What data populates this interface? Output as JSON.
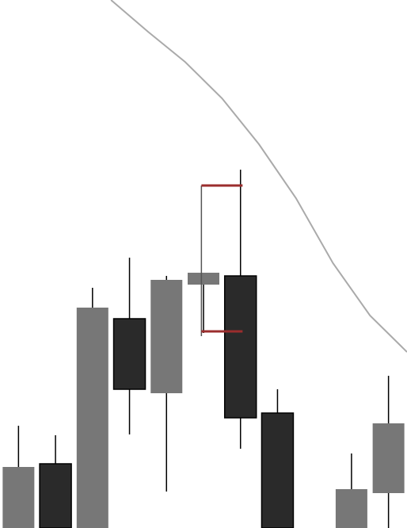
{
  "chart_data": {
    "type": "candlestick",
    "title": "",
    "xlabel": "",
    "ylabel": "",
    "grid": false,
    "legend": "none",
    "ylim": [
      0,
      666
    ],
    "xlim": [
      -0.5,
      10.5
    ],
    "colors": {
      "up": "#777777",
      "down": "#2a2a2a",
      "wick": "#000000",
      "overlay_line": "#aaaaaa",
      "range_marker": "#9b2d2d"
    },
    "candles": [
      {
        "x": 0,
        "open": 0,
        "high": 129,
        "low": 0,
        "close": 77,
        "direction": "up"
      },
      {
        "x": 1,
        "open": 81,
        "high": 117,
        "low": 0,
        "close": 0,
        "direction": "down"
      },
      {
        "x": 2,
        "open": 0,
        "high": 303,
        "low": 0,
        "close": 278,
        "direction": "up"
      },
      {
        "x": 3,
        "open": 264,
        "high": 341,
        "low": 118,
        "close": 175,
        "direction": "down"
      },
      {
        "x": 4,
        "open": 170,
        "high": 318,
        "low": 46,
        "close": 313,
        "direction": "up"
      },
      {
        "x": 5,
        "open": 307,
        "high": 322,
        "low": 246,
        "close": 322,
        "direction": "up",
        "overlay": true
      },
      {
        "x": 6,
        "open": 318,
        "high": 452,
        "low": 100,
        "close": 139,
        "direction": "down"
      },
      {
        "x": 7,
        "open": 145,
        "high": 175,
        "low": 0,
        "close": 0,
        "direction": "down"
      },
      {
        "x": 9,
        "open": 0,
        "high": 94,
        "low": 0,
        "close": 49,
        "direction": "up"
      },
      {
        "x": 10,
        "open": 44,
        "high": 192,
        "low": 0,
        "close": 132,
        "direction": "up"
      }
    ],
    "range_marker": {
      "x": 5.5,
      "high": 432,
      "low": 248
    },
    "overlay_line": [
      {
        "x": 2.5,
        "y": 666
      },
      {
        "x": 3.5,
        "y": 626
      },
      {
        "x": 4.5,
        "y": 588
      },
      {
        "x": 5.5,
        "y": 542
      },
      {
        "x": 6.5,
        "y": 484
      },
      {
        "x": 7.5,
        "y": 416
      },
      {
        "x": 8.5,
        "y": 334
      },
      {
        "x": 9.5,
        "y": 268
      },
      {
        "x": 10.5,
        "y": 222
      }
    ]
  }
}
